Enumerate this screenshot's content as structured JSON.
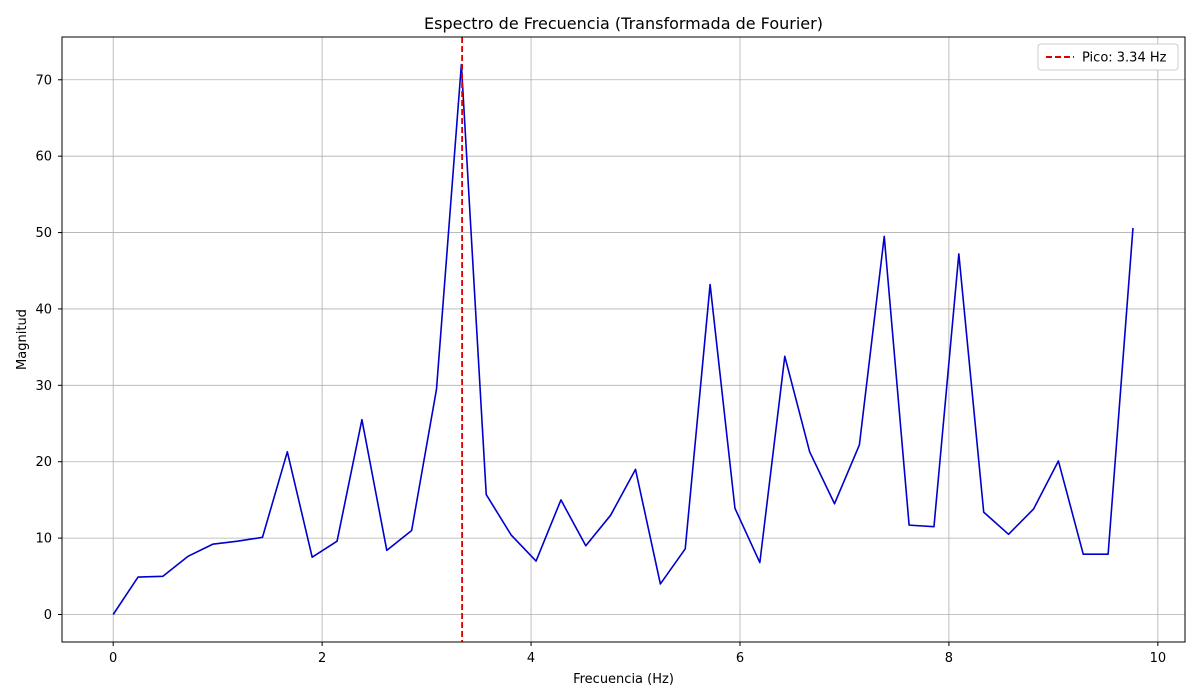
{
  "chart_data": {
    "type": "line",
    "title": "Espectro de Frecuencia (Transformada de Fourier)",
    "xlabel": "Frecuencia (Hz)",
    "ylabel": "Magnitud",
    "xlim": [
      -0.49,
      10.26
    ],
    "ylim": [
      -3.6,
      75.6
    ],
    "xticks": [
      0,
      2,
      4,
      6,
      8,
      10
    ],
    "yticks": [
      0,
      10,
      20,
      30,
      40,
      50,
      60,
      70
    ],
    "grid": true,
    "legend_position": "top-right",
    "series": [
      {
        "name": "",
        "color": "#0000cc",
        "x": [
          0,
          0.238,
          0.476,
          0.714,
          0.952,
          1.19,
          1.429,
          1.667,
          1.905,
          2.143,
          2.381,
          2.619,
          2.857,
          3.095,
          3.333,
          3.571,
          3.81,
          4.048,
          4.286,
          4.524,
          4.762,
          5.0,
          5.238,
          5.476,
          5.714,
          5.952,
          6.19,
          6.429,
          6.667,
          6.905,
          7.143,
          7.381,
          7.619,
          7.857,
          8.095,
          8.333,
          8.571,
          8.81,
          9.048,
          9.286,
          9.524,
          9.762
        ],
        "y": [
          0,
          4.9,
          5.0,
          7.6,
          9.2,
          9.6,
          10.1,
          21.3,
          7.5,
          9.6,
          25.5,
          8.4,
          11.0,
          29.5,
          72.0,
          15.7,
          10.4,
          7.0,
          15.0,
          9.0,
          13.0,
          19.0,
          4.0,
          8.6,
          43.2,
          13.9,
          6.8,
          33.8,
          21.3,
          14.5,
          22.2,
          49.5,
          11.7,
          11.5,
          47.2,
          13.4,
          10.5,
          13.8,
          20.1,
          7.9,
          7.9,
          50.6
        ]
      }
    ],
    "annotations": [
      {
        "type": "vertical-line",
        "x": 3.34,
        "color": "#dd0000",
        "style": "dashed",
        "label": "Pico: 3.34 Hz"
      }
    ]
  }
}
